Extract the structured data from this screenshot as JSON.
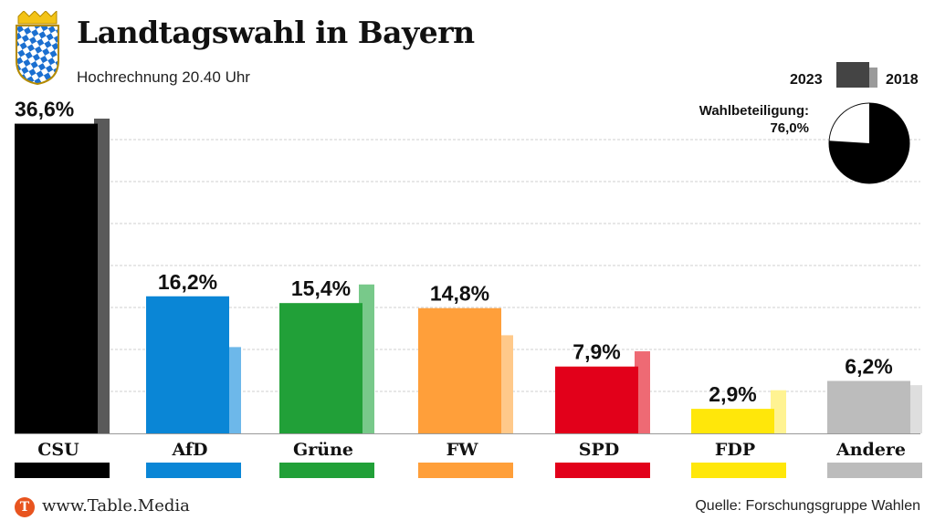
{
  "header": {
    "title": "Landtagswahl in Bayern",
    "subtitle": "Hochrechnung 20.40 Uhr"
  },
  "legend": {
    "current_year": "2023",
    "previous_year": "2018"
  },
  "turnout": {
    "label": "Wahlbeteiligung:",
    "value_text": "76,0%",
    "value": 76.0
  },
  "footer": {
    "logo_letter": "T",
    "url": "www.Table.Media",
    "source": "Quelle: Forschungsgruppe Wahlen"
  },
  "chart_data": {
    "type": "bar",
    "title": "Landtagswahl in Bayern",
    "subtitle": "Hochrechnung 20.40 Uhr",
    "categories": [
      "CSU",
      "AfD",
      "Grüne",
      "FW",
      "SPD",
      "FDP",
      "Andere"
    ],
    "series": [
      {
        "name": "2023",
        "values": [
          36.6,
          16.2,
          15.4,
          14.8,
          7.9,
          2.9,
          6.2
        ]
      },
      {
        "name": "2018",
        "values": [
          37.2,
          10.2,
          17.6,
          11.6,
          9.7,
          5.1,
          5.7
        ]
      }
    ],
    "value_labels": [
      "36,6%",
      "16,2%",
      "15,4%",
      "14,8%",
      "7,9%",
      "2,9%",
      "6,2%"
    ],
    "colors_2023": [
      "#000000",
      "#0a86d6",
      "#21a038",
      "#ff9f3a",
      "#e2001a",
      "#ffe70a",
      "#bcbcbc"
    ],
    "colors_2018": [
      "#5a5a5a",
      "#6db8ea",
      "#78c98a",
      "#ffc98a",
      "#ee6a74",
      "#fff392",
      "#dedede"
    ],
    "ylim": [
      0,
      37.2
    ],
    "grid": true
  }
}
